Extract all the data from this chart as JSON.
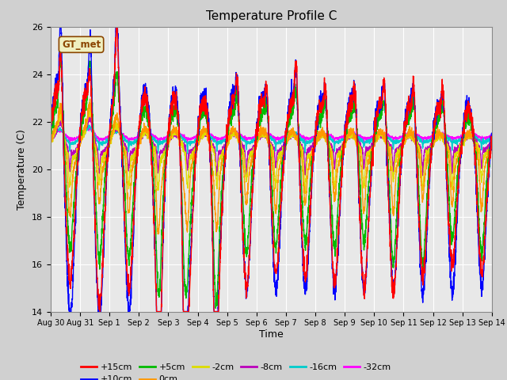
{
  "title": "Temperature Profile C",
  "xlabel": "Time",
  "ylabel": "Temperature (C)",
  "ylim": [
    14,
    26
  ],
  "xlim": [
    0,
    15
  ],
  "annotation": "GT_met",
  "colors": {
    "+15cm": "#ff0000",
    "+10cm": "#0000ff",
    "+5cm": "#00bb00",
    "0cm": "#ff9900",
    "-2cm": "#dddd00",
    "-8cm": "#bb00bb",
    "-16cm": "#00cccc",
    "-32cm": "#ff00ff"
  },
  "xtick_labels": [
    "Aug 30",
    "Aug 31",
    "Sep 1",
    "Sep 2",
    "Sep 3",
    "Sep 4",
    "Sep 5",
    "Sep 6",
    "Sep 7",
    "Sep 8",
    "Sep 9",
    "Sep 10",
    "Sep 11",
    "Sep 12",
    "Sep 13",
    "Sep 14"
  ],
  "xtick_positions": [
    0,
    1,
    2,
    3,
    4,
    5,
    6,
    7,
    8,
    9,
    10,
    11,
    12,
    13,
    14,
    15
  ],
  "ytick_labels": [
    "14",
    "16",
    "18",
    "20",
    "22",
    "24",
    "26"
  ],
  "ytick_positions": [
    14,
    16,
    18,
    20,
    22,
    24,
    26
  ],
  "bg_color": "#e8e8e8",
  "grid_color": "#ffffff",
  "line_width": 1.0
}
